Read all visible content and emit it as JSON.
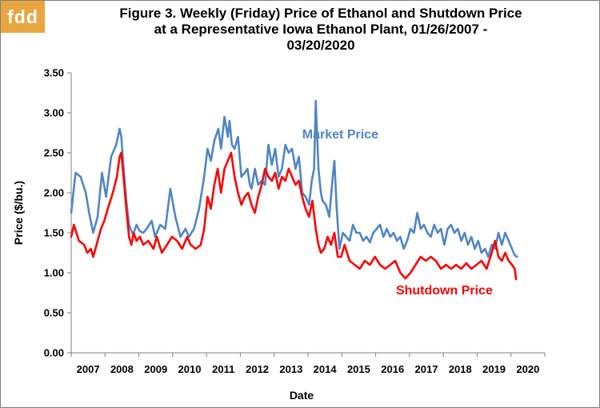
{
  "brand": {
    "logo_text": "fdd",
    "logo_color": "#e8a640"
  },
  "chart_data": {
    "type": "line",
    "title_lines": [
      "Figure 3. Weekly (Friday) Price of Ethanol and Shutdown Price",
      "at a Representative  Iowa Ethanol Plant, 01/26/2007  -",
      "03/20/2020"
    ],
    "xlabel": "Date",
    "ylabel": "Price ($/bu.)",
    "xlim": [
      2006.07,
      2020.07
    ],
    "ylim": [
      0,
      3.5
    ],
    "yticks": [
      "0.00",
      "0.50",
      "1.00",
      "1.50",
      "2.00",
      "2.50",
      "3.00",
      "3.50"
    ],
    "xticks": [
      "2007",
      "2008",
      "2009",
      "2010",
      "2011",
      "2012",
      "2013",
      "2014",
      "2015",
      "2016",
      "2017",
      "2018",
      "2019",
      "2020"
    ],
    "grid": "none",
    "series": [
      {
        "name": "Market Price",
        "color": "#4f86c6",
        "x": [
          2006.07,
          2006.2,
          2006.35,
          2006.5,
          2006.6,
          2006.72,
          2006.85,
          2006.98,
          2007.1,
          2007.25,
          2007.4,
          2007.5,
          2007.55,
          2007.62,
          2007.7,
          2007.78,
          2007.85,
          2007.9,
          2008.0,
          2008.1,
          2008.2,
          2008.3,
          2008.45,
          2008.55,
          2008.7,
          2008.85,
          2009.0,
          2009.15,
          2009.3,
          2009.45,
          2009.55,
          2009.7,
          2009.85,
          2010.0,
          2010.1,
          2010.2,
          2010.3,
          2010.42,
          2010.5,
          2010.6,
          2010.7,
          2010.75,
          2010.82,
          2010.9,
          2011.0,
          2011.1,
          2011.2,
          2011.28,
          2011.35,
          2011.4,
          2011.5,
          2011.6,
          2011.7,
          2011.8,
          2011.9,
          2012.0,
          2012.1,
          2012.2,
          2012.3,
          2012.4,
          2012.5,
          2012.6,
          2012.7,
          2012.8,
          2012.9,
          2013.0,
          2013.1,
          2013.18,
          2013.25,
          2013.3,
          2013.38,
          2013.45,
          2013.5,
          2013.6,
          2013.7,
          2013.8,
          2013.85,
          2013.92,
          2014.0,
          2014.1,
          2014.2,
          2014.3,
          2014.4,
          2014.5,
          2014.6,
          2014.7,
          2014.8,
          2014.9,
          2015.0,
          2015.1,
          2015.2,
          2015.3,
          2015.4,
          2015.5,
          2015.6,
          2015.7,
          2015.8,
          2015.9,
          2016.0,
          2016.1,
          2016.2,
          2016.3,
          2016.4,
          2016.5,
          2016.6,
          2016.7,
          2016.8,
          2016.9,
          2017.0,
          2017.1,
          2017.2,
          2017.3,
          2017.4,
          2017.5,
          2017.6,
          2017.7,
          2017.8,
          2017.9,
          2018.0,
          2018.1,
          2018.2,
          2018.3,
          2018.4,
          2018.5,
          2018.6,
          2018.7,
          2018.8,
          2018.9,
          2019.0,
          2019.1,
          2019.18,
          2019.25
        ],
        "y": [
          1.75,
          2.25,
          2.2,
          2.0,
          1.75,
          1.5,
          1.7,
          2.25,
          1.95,
          2.45,
          2.6,
          2.8,
          2.7,
          2.3,
          1.9,
          1.6,
          1.52,
          1.48,
          1.6,
          1.52,
          1.5,
          1.55,
          1.65,
          1.45,
          1.6,
          1.55,
          2.05,
          1.7,
          1.45,
          1.55,
          1.45,
          1.55,
          1.8,
          2.2,
          2.55,
          2.4,
          2.65,
          2.8,
          2.55,
          2.95,
          2.7,
          2.9,
          2.6,
          2.55,
          2.7,
          2.2,
          2.25,
          2.3,
          2.1,
          2.05,
          2.3,
          2.1,
          2.15,
          2.1,
          2.6,
          2.35,
          2.55,
          2.2,
          2.3,
          2.6,
          2.5,
          2.55,
          2.3,
          2.45,
          2.0,
          1.95,
          1.85,
          2.15,
          2.3,
          3.15,
          2.3,
          2.0,
          1.9,
          1.85,
          1.7,
          2.2,
          2.4,
          1.8,
          1.3,
          1.5,
          1.45,
          1.4,
          1.6,
          1.5,
          1.5,
          1.4,
          1.45,
          1.38,
          1.5,
          1.55,
          1.6,
          1.45,
          1.55,
          1.45,
          1.5,
          1.4,
          1.45,
          1.3,
          1.4,
          1.55,
          1.5,
          1.75,
          1.55,
          1.6,
          1.5,
          1.45,
          1.6,
          1.5,
          1.55,
          1.35,
          1.55,
          1.6,
          1.5,
          1.55,
          1.4,
          1.5,
          1.35,
          1.45,
          1.3,
          1.4,
          1.25,
          1.3,
          1.2,
          1.35,
          1.3,
          1.5,
          1.35,
          1.5,
          1.4,
          1.3,
          1.22,
          1.2
        ]
      },
      {
        "name": "Shutdown Price",
        "color": "#ff0000",
        "x": [
          2006.07,
          2006.15,
          2006.3,
          2006.45,
          2006.55,
          2006.65,
          2006.72,
          2006.82,
          2006.95,
          2007.05,
          2007.15,
          2007.3,
          2007.42,
          2007.5,
          2007.55,
          2007.62,
          2007.7,
          2007.78,
          2007.85,
          2007.92,
          2008.0,
          2008.1,
          2008.2,
          2008.35,
          2008.5,
          2008.6,
          2008.75,
          2008.9,
          2009.05,
          2009.2,
          2009.35,
          2009.5,
          2009.6,
          2009.75,
          2009.9,
          2010.0,
          2010.1,
          2010.2,
          2010.3,
          2010.4,
          2010.5,
          2010.6,
          2010.7,
          2010.8,
          2010.9,
          2011.0,
          2011.1,
          2011.2,
          2011.3,
          2011.4,
          2011.5,
          2011.6,
          2011.7,
          2011.8,
          2011.9,
          2012.0,
          2012.1,
          2012.2,
          2012.3,
          2012.4,
          2012.5,
          2012.6,
          2012.7,
          2012.8,
          2012.9,
          2013.0,
          2013.1,
          2013.2,
          2013.3,
          2013.38,
          2013.45,
          2013.55,
          2013.65,
          2013.75,
          2013.85,
          2013.95,
          2014.05,
          2014.15,
          2014.3,
          2014.45,
          2014.6,
          2014.75,
          2014.9,
          2015.05,
          2015.2,
          2015.35,
          2015.5,
          2015.65,
          2015.8,
          2015.95,
          2016.1,
          2016.25,
          2016.4,
          2016.55,
          2016.7,
          2016.85,
          2017.0,
          2017.15,
          2017.3,
          2017.45,
          2017.6,
          2017.75,
          2017.9,
          2018.05,
          2018.2,
          2018.35,
          2018.5,
          2018.6,
          2018.7,
          2018.8,
          2018.9,
          2019.0,
          2019.1,
          2019.18,
          2019.22
        ],
        "y": [
          1.45,
          1.6,
          1.4,
          1.35,
          1.25,
          1.3,
          1.2,
          1.35,
          1.55,
          1.65,
          1.8,
          2.0,
          2.2,
          2.45,
          2.5,
          2.2,
          1.8,
          1.45,
          1.35,
          1.5,
          1.4,
          1.45,
          1.35,
          1.4,
          1.3,
          1.45,
          1.25,
          1.35,
          1.45,
          1.4,
          1.3,
          1.45,
          1.35,
          1.3,
          1.35,
          1.55,
          1.95,
          1.8,
          2.1,
          2.3,
          2.0,
          2.3,
          2.4,
          2.5,
          2.2,
          2.0,
          1.85,
          1.95,
          2.0,
          1.85,
          1.75,
          1.95,
          2.1,
          2.3,
          2.2,
          2.15,
          2.25,
          2.05,
          2.2,
          2.15,
          2.3,
          2.2,
          2.1,
          2.15,
          1.95,
          1.8,
          1.7,
          1.9,
          1.55,
          1.35,
          1.25,
          1.3,
          1.45,
          1.35,
          1.5,
          1.2,
          1.2,
          1.35,
          1.15,
          1.1,
          1.05,
          1.15,
          1.1,
          1.2,
          1.1,
          1.05,
          1.1,
          1.15,
          1.0,
          0.93,
          1.0,
          1.1,
          1.2,
          1.15,
          1.2,
          1.15,
          1.05,
          1.1,
          1.05,
          1.1,
          1.05,
          1.12,
          1.05,
          1.1,
          1.15,
          1.05,
          1.25,
          1.4,
          1.2,
          1.15,
          1.25,
          1.15,
          1.1,
          1.05,
          0.92
        ]
      }
    ],
    "annotations": [
      {
        "text": "Market Price",
        "series": 0,
        "x": 2012.9,
        "y": 2.68
      },
      {
        "text": "Shutdown Price",
        "series": 1,
        "x": 2015.67,
        "y": 0.73
      }
    ]
  }
}
